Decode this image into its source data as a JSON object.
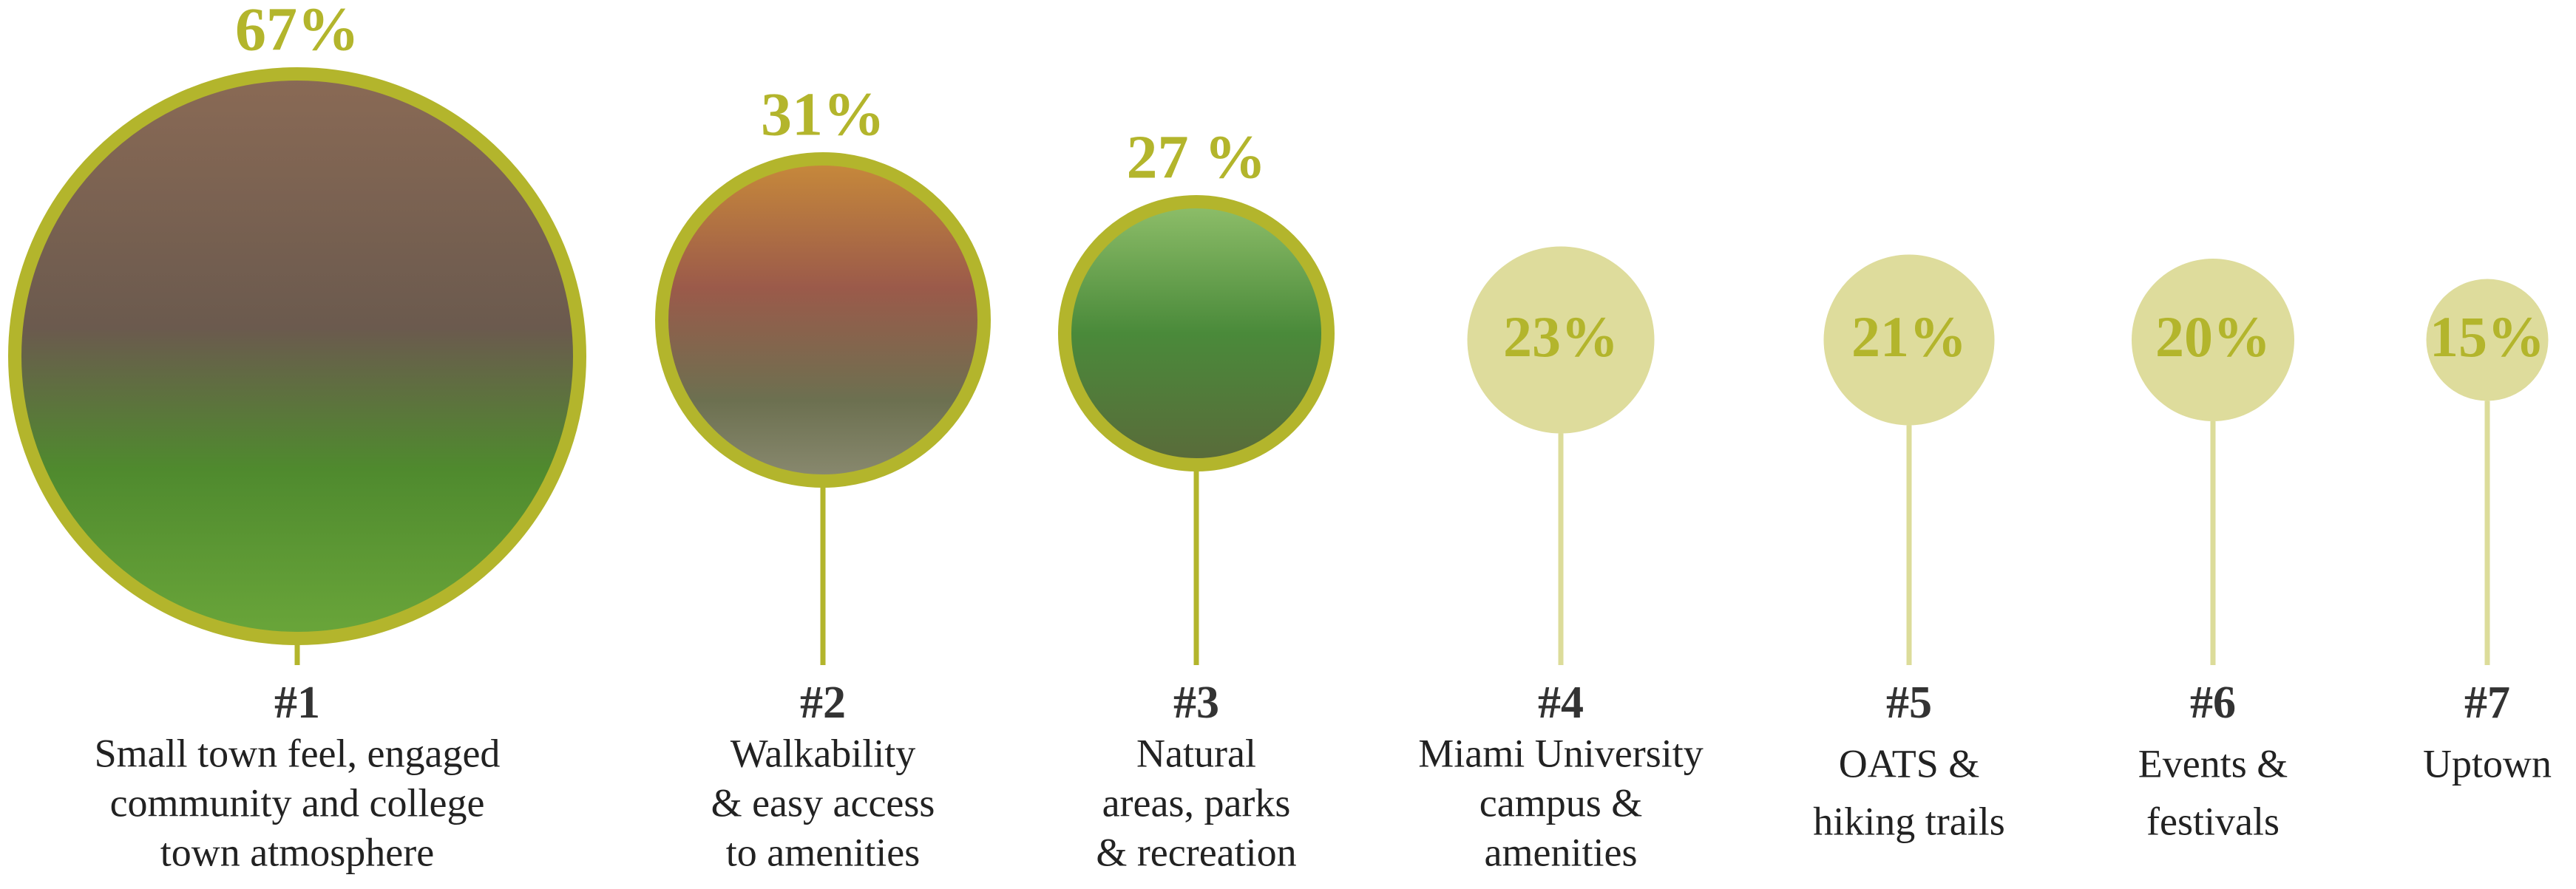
{
  "chart_data": {
    "type": "bubble",
    "ranks": [
      "#1",
      "#2",
      "#3",
      "#4",
      "#5",
      "#6",
      "#7"
    ],
    "categories": [
      [
        "Small town feel, engaged",
        "community and college",
        "town atmosphere"
      ],
      [
        "Walkability",
        "& easy access",
        "to amenities"
      ],
      [
        "Natural",
        "areas, parks",
        "& recreation"
      ],
      [
        "Miami University",
        "campus &",
        "amenities"
      ],
      [
        "OATS &",
        "hiking trails"
      ],
      [
        "Events &",
        "festivals"
      ],
      [
        "Uptown"
      ]
    ],
    "values": [
      67,
      31,
      27,
      23,
      21,
      20,
      15
    ],
    "value_labels": [
      "67%",
      "31%",
      "27 %",
      "23%",
      "21%",
      "20%",
      "15%"
    ]
  }
}
